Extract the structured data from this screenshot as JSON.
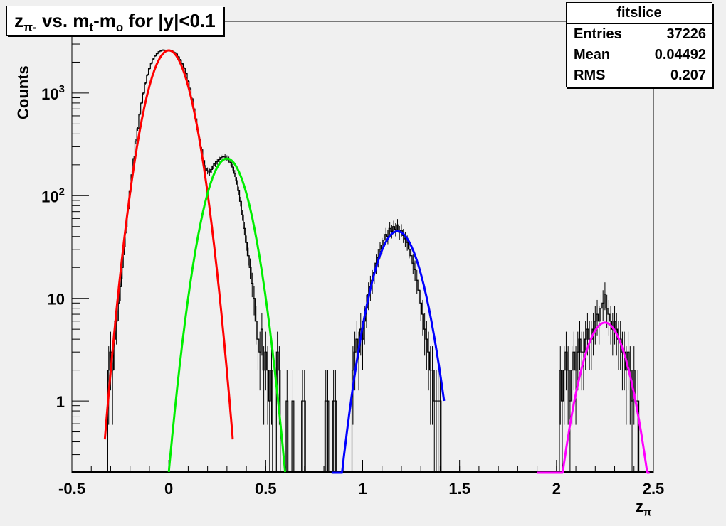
{
  "title": {
    "main": "z",
    "sub": "π-",
    "rest": " vs. m",
    "sub2": "t",
    "rest2": "-m",
    "sub3": "o",
    "rest3": " for |y|<0.1"
  },
  "stats": {
    "name": "fitslice",
    "rows": [
      {
        "label": "Entries",
        "value": "37226"
      },
      {
        "label": "Mean",
        "value": "0.04492"
      },
      {
        "label": "RMS",
        "value": "0.207"
      }
    ]
  },
  "axes": {
    "ylabel": "Counts",
    "xlabel_main": "z",
    "xlabel_sub": "π"
  },
  "colors": {
    "background": "#f0f0f0",
    "histogram": "#000000",
    "fit1": "#ff0000",
    "fit2": "#00ee00",
    "fit3": "#0000ff",
    "fit4": "#ff00ff"
  },
  "chart_data": {
    "type": "line",
    "log_y": true,
    "xlim": [
      -0.5,
      2.5
    ],
    "ylim": [
      0.2,
      5000
    ],
    "x_ticks": [
      -0.5,
      0,
      0.5,
      1,
      1.5,
      2,
      2.5
    ],
    "x_tick_labels": [
      "-0.5",
      "0",
      "0.5",
      "1",
      "1.5",
      "2",
      "2.5"
    ],
    "y_ticks": [
      1,
      10,
      100,
      1000
    ],
    "y_tick_labels": [
      "1",
      "10",
      "10²",
      "10³"
    ],
    "gaussian_fits": [
      {
        "color": "#ff0000",
        "amplitude": 2600,
        "mean": 0.0,
        "sigma": 0.079,
        "range": [
          -0.33,
          0.33
        ]
      },
      {
        "color": "#00ee00",
        "amplitude": 230,
        "mean": 0.3,
        "sigma": 0.08,
        "range": [
          0.0,
          0.6
        ]
      },
      {
        "color": "#0000ff",
        "amplitude": 45,
        "mean": 1.18,
        "sigma": 0.087,
        "range": [
          0.84,
          1.42
        ]
      },
      {
        "color": "#ff00ff",
        "amplitude": 5.8,
        "mean": 2.25,
        "sigma": 0.084,
        "range": [
          1.9,
          2.48
        ]
      }
    ],
    "histogram": {
      "bin_width": 0.01,
      "bins": [
        [
          -0.31,
          2
        ],
        [
          -0.3,
          3
        ],
        [
          -0.29,
          2
        ],
        [
          -0.28,
          4
        ],
        [
          -0.27,
          6
        ],
        [
          -0.26,
          9
        ],
        [
          -0.25,
          13
        ],
        [
          -0.24,
          20
        ],
        [
          -0.23,
          32
        ],
        [
          -0.22,
          50
        ],
        [
          -0.21,
          75
        ],
        [
          -0.2,
          110
        ],
        [
          -0.19,
          160
        ],
        [
          -0.18,
          230
        ],
        [
          -0.17,
          340
        ],
        [
          -0.16,
          450
        ],
        [
          -0.15,
          620
        ],
        [
          -0.14,
          800
        ],
        [
          -0.13,
          1000
        ],
        [
          -0.12,
          1250
        ],
        [
          -0.11,
          1500
        ],
        [
          -0.1,
          1730
        ],
        [
          -0.09,
          1950
        ],
        [
          -0.08,
          2150
        ],
        [
          -0.07,
          2300
        ],
        [
          -0.06,
          2420
        ],
        [
          -0.05,
          2530
        ],
        [
          -0.04,
          2580
        ],
        [
          -0.03,
          2620
        ],
        [
          -0.02,
          2600
        ],
        [
          -0.01,
          2610
        ],
        [
          0.0,
          2600
        ],
        [
          0.01,
          2580
        ],
        [
          0.02,
          2550
        ],
        [
          0.03,
          2480
        ],
        [
          0.04,
          2400
        ],
        [
          0.05,
          2250
        ],
        [
          0.06,
          2100
        ],
        [
          0.07,
          1930
        ],
        [
          0.08,
          1750
        ],
        [
          0.09,
          1550
        ],
        [
          0.1,
          1300
        ],
        [
          0.11,
          1100
        ],
        [
          0.12,
          880
        ],
        [
          0.13,
          700
        ],
        [
          0.14,
          560
        ],
        [
          0.15,
          440
        ],
        [
          0.16,
          350
        ],
        [
          0.17,
          280
        ],
        [
          0.18,
          220
        ],
        [
          0.19,
          185
        ],
        [
          0.2,
          175
        ],
        [
          0.21,
          170
        ],
        [
          0.22,
          180
        ],
        [
          0.23,
          195
        ],
        [
          0.24,
          205
        ],
        [
          0.25,
          215
        ],
        [
          0.26,
          225
        ],
        [
          0.27,
          235
        ],
        [
          0.28,
          240
        ],
        [
          0.29,
          238
        ],
        [
          0.3,
          232
        ],
        [
          0.31,
          225
        ],
        [
          0.32,
          210
        ],
        [
          0.33,
          190
        ],
        [
          0.34,
          165
        ],
        [
          0.35,
          140
        ],
        [
          0.36,
          112
        ],
        [
          0.37,
          88
        ],
        [
          0.38,
          65
        ],
        [
          0.39,
          48
        ],
        [
          0.4,
          35
        ],
        [
          0.41,
          26
        ],
        [
          0.42,
          20
        ],
        [
          0.43,
          14
        ],
        [
          0.44,
          10
        ],
        [
          0.45,
          6
        ],
        [
          0.46,
          4
        ],
        [
          0.47,
          3
        ],
        [
          0.48,
          5
        ],
        [
          0.49,
          2
        ],
        [
          0.5,
          3
        ],
        [
          0.51,
          2
        ],
        [
          0.52,
          1
        ],
        [
          0.53,
          2
        ],
        [
          0.56,
          3
        ],
        [
          0.57,
          2
        ],
        [
          0.61,
          1
        ],
        [
          0.64,
          1
        ],
        [
          0.69,
          1
        ],
        [
          0.7,
          1
        ],
        [
          0.81,
          1
        ],
        [
          0.82,
          1
        ],
        [
          0.85,
          1
        ],
        [
          0.86,
          1
        ],
        [
          0.95,
          2
        ],
        [
          0.96,
          3
        ],
        [
          0.97,
          4
        ],
        [
          0.98,
          3
        ],
        [
          0.99,
          5
        ],
        [
          1.0,
          4
        ],
        [
          1.01,
          6
        ],
        [
          1.02,
          8
        ],
        [
          1.03,
          11
        ],
        [
          1.04,
          13
        ],
        [
          1.05,
          15
        ],
        [
          1.06,
          18
        ],
        [
          1.07,
          22
        ],
        [
          1.08,
          25
        ],
        [
          1.09,
          30
        ],
        [
          1.1,
          33
        ],
        [
          1.11,
          37
        ],
        [
          1.12,
          42
        ],
        [
          1.13,
          40
        ],
        [
          1.14,
          48
        ],
        [
          1.15,
          45
        ],
        [
          1.16,
          50
        ],
        [
          1.17,
          47
        ],
        [
          1.18,
          52
        ],
        [
          1.19,
          44
        ],
        [
          1.2,
          46
        ],
        [
          1.21,
          41
        ],
        [
          1.22,
          38
        ],
        [
          1.23,
          35
        ],
        [
          1.24,
          30
        ],
        [
          1.25,
          26
        ],
        [
          1.26,
          22
        ],
        [
          1.27,
          19
        ],
        [
          1.28,
          15
        ],
        [
          1.29,
          12
        ],
        [
          1.3,
          9
        ],
        [
          1.31,
          7
        ],
        [
          1.32,
          5
        ],
        [
          1.33,
          4
        ],
        [
          1.34,
          3
        ],
        [
          1.35,
          2
        ],
        [
          1.36,
          2
        ],
        [
          1.37,
          1
        ],
        [
          1.38,
          1
        ],
        [
          1.39,
          1
        ],
        [
          1.4,
          1
        ],
        [
          2.02,
          2
        ],
        [
          2.03,
          1
        ],
        [
          2.04,
          2
        ],
        [
          2.05,
          3
        ],
        [
          2.06,
          2
        ],
        [
          2.07,
          1
        ],
        [
          2.08,
          2
        ],
        [
          2.09,
          3
        ],
        [
          2.1,
          2
        ],
        [
          2.11,
          3
        ],
        [
          2.12,
          4
        ],
        [
          2.13,
          3
        ],
        [
          2.14,
          3
        ],
        [
          2.15,
          4
        ],
        [
          2.16,
          5
        ],
        [
          2.17,
          4
        ],
        [
          2.18,
          4
        ],
        [
          2.19,
          5
        ],
        [
          2.2,
          6
        ],
        [
          2.21,
          7
        ],
        [
          2.22,
          6
        ],
        [
          2.23,
          8
        ],
        [
          2.24,
          9
        ],
        [
          2.25,
          11
        ],
        [
          2.26,
          8
        ],
        [
          2.27,
          7
        ],
        [
          2.28,
          6
        ],
        [
          2.29,
          5
        ],
        [
          2.3,
          6
        ],
        [
          2.31,
          5
        ],
        [
          2.32,
          4
        ],
        [
          2.33,
          4
        ],
        [
          2.34,
          3
        ],
        [
          2.35,
          3
        ],
        [
          2.36,
          2
        ],
        [
          2.37,
          3
        ],
        [
          2.38,
          2
        ],
        [
          2.39,
          1
        ],
        [
          2.4,
          2
        ],
        [
          2.41,
          1
        ],
        [
          2.42,
          1
        ]
      ]
    }
  }
}
